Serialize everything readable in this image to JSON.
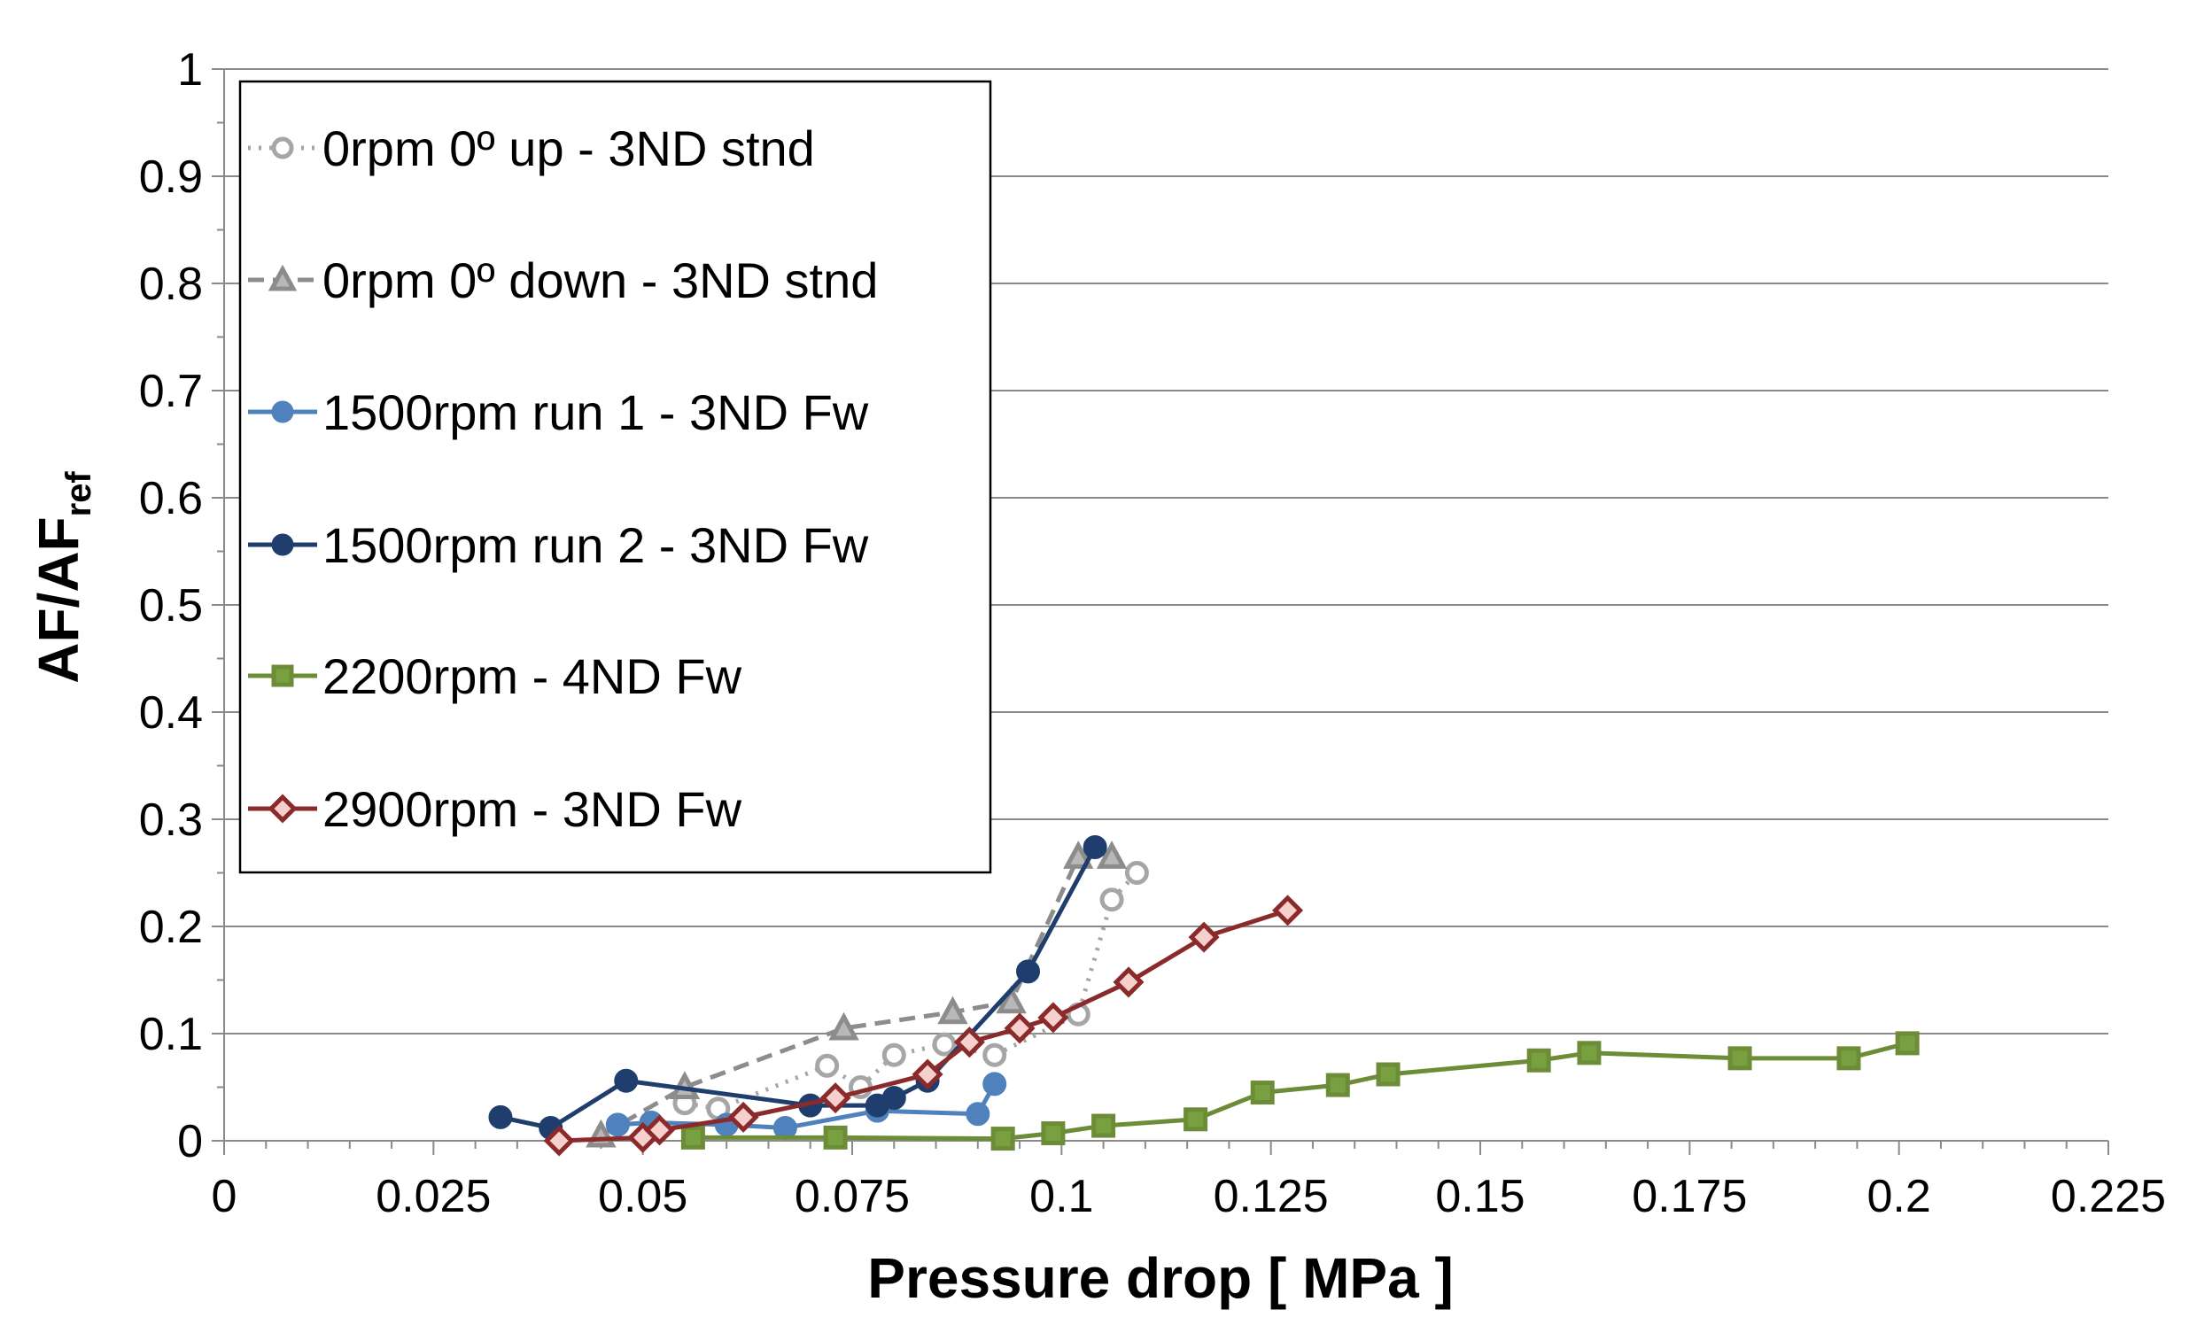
{
  "chart_data": {
    "type": "line",
    "title": "",
    "xlabel": "Pressure drop   [ MPa ]",
    "ylabel_main": "AF/AF",
    "ylabel_sub": "ref",
    "xlim": [
      0,
      0.225
    ],
    "ylim": [
      0,
      1
    ],
    "xticks": [
      "0",
      "0.025",
      "0.05",
      "0.075",
      "0.1",
      "0.125",
      "0.15",
      "0.175",
      "0.2",
      "0.225"
    ],
    "xtick_values": [
      0,
      0.025,
      0.05,
      0.075,
      0.1,
      0.125,
      0.15,
      0.175,
      0.2,
      0.225
    ],
    "yticks": [
      "0",
      "0.1",
      "0.2",
      "0.3",
      "0.4",
      "0.5",
      "0.6",
      "0.7",
      "0.8",
      "0.9",
      "1"
    ],
    "ytick_values": [
      0,
      0.1,
      0.2,
      0.3,
      0.4,
      0.5,
      0.6,
      0.7,
      0.8,
      0.9,
      1.0
    ],
    "grid": "horizontal",
    "legend_position": "top-left",
    "series": [
      {
        "name": "0rpm  0º  up - 3ND stnd",
        "color": "#a6a6a6",
        "dash": "dotted",
        "marker": "circle-open",
        "x": [
          0.055,
          0.059,
          0.072,
          0.076,
          0.08,
          0.086,
          0.092,
          0.102,
          0.106,
          0.109
        ],
        "y": [
          0.035,
          0.03,
          0.07,
          0.05,
          0.08,
          0.09,
          0.08,
          0.118,
          0.225,
          0.25
        ]
      },
      {
        "name": "0rpm  0º  down - 3ND stnd",
        "color": "#8c8c8c",
        "dash": "dashed",
        "marker": "triangle",
        "x": [
          0.045,
          0.055,
          0.074,
          0.087,
          0.094,
          0.102,
          0.106
        ],
        "y": [
          0.005,
          0.05,
          0.105,
          0.12,
          0.13,
          0.265,
          0.265
        ]
      },
      {
        "name": "1500rpm  run 1 - 3ND Fw",
        "color": "#4f81bd",
        "dash": "solid",
        "marker": "circle",
        "x": [
          0.047,
          0.051,
          0.06,
          0.067,
          0.078,
          0.09,
          0.092
        ],
        "y": [
          0.015,
          0.017,
          0.015,
          0.012,
          0.028,
          0.025,
          0.053
        ]
      },
      {
        "name": "1500rpm  run 2 - 3ND Fw",
        "color": "#1f3e6e",
        "dash": "solid",
        "marker": "circle",
        "x": [
          0.033,
          0.039,
          0.048,
          0.07,
          0.078,
          0.08,
          0.084,
          0.096,
          0.104
        ],
        "y": [
          0.022,
          0.012,
          0.056,
          0.033,
          0.033,
          0.04,
          0.056,
          0.158,
          0.274
        ]
      },
      {
        "name": "2200rpm - 4ND Fw",
        "color": "#6d8c38",
        "dash": "solid",
        "marker": "square",
        "x": [
          0.056,
          0.073,
          0.093,
          0.099,
          0.105,
          0.116,
          0.124,
          0.133,
          0.139,
          0.157,
          0.163,
          0.181,
          0.194,
          0.201
        ],
        "y": [
          0.003,
          0.003,
          0.002,
          0.007,
          0.014,
          0.02,
          0.045,
          0.052,
          0.062,
          0.075,
          0.082,
          0.077,
          0.077,
          0.091
        ]
      },
      {
        "name": "2900rpm - 3ND Fw",
        "color": "#8b2a2a",
        "dash": "solid",
        "marker": "diamond",
        "x": [
          0.04,
          0.05,
          0.052,
          0.062,
          0.073,
          0.084,
          0.089,
          0.095,
          0.099,
          0.108,
          0.117,
          0.127
        ],
        "y": [
          0.0,
          0.003,
          0.01,
          0.022,
          0.04,
          0.062,
          0.092,
          0.105,
          0.115,
          0.148,
          0.19,
          0.215
        ]
      }
    ]
  }
}
